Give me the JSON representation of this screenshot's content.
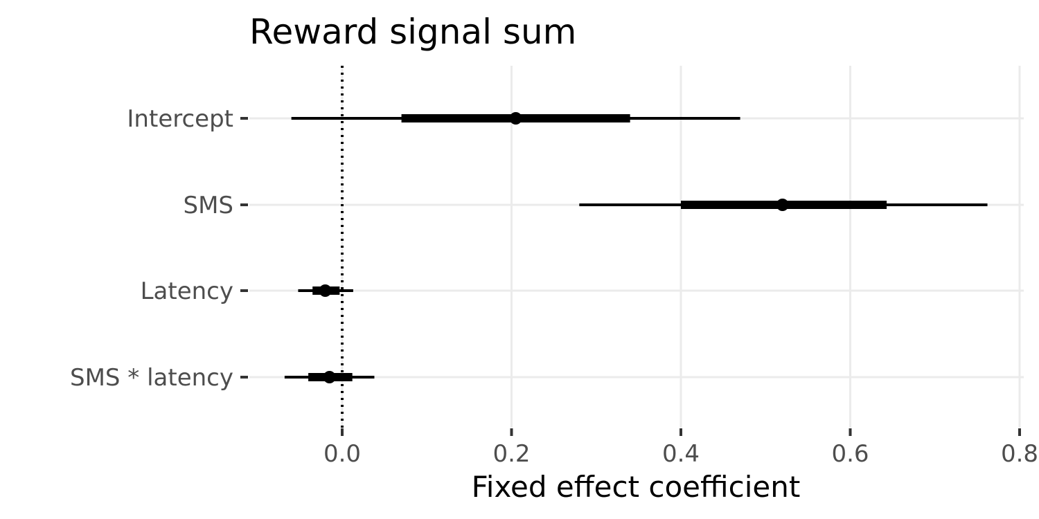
{
  "chart_data": {
    "type": "forest",
    "title": "Reward signal sum",
    "xlabel": "Fixed effect coefficient",
    "ylabel": "",
    "xlim": [
      -0.115,
      0.81
    ],
    "xticks": [
      0.0,
      0.2,
      0.4,
      0.6,
      0.8
    ],
    "xtick_labels": [
      "0.0",
      "0.2",
      "0.4",
      "0.6",
      "0.8"
    ],
    "reference_line": {
      "x": 0.0,
      "style": "dotted"
    },
    "grid": true,
    "legend": "none",
    "categories": [
      "Intercept",
      "SMS",
      "Latency",
      "SMS * latency"
    ],
    "points": [
      {
        "label": "Intercept",
        "estimate": 0.205,
        "inner": [
          0.07,
          0.34
        ],
        "outer": [
          -0.06,
          0.47
        ]
      },
      {
        "label": "SMS",
        "estimate": 0.52,
        "inner": [
          0.4,
          0.643
        ],
        "outer": [
          0.28,
          0.762
        ]
      },
      {
        "label": "Latency",
        "estimate": -0.02,
        "inner": [
          -0.035,
          -0.003
        ],
        "outer": [
          -0.052,
          0.013
        ]
      },
      {
        "label": "SMS * latency",
        "estimate": -0.015,
        "inner": [
          -0.04,
          0.012
        ],
        "outer": [
          -0.068,
          0.038
        ]
      }
    ],
    "colors": {
      "mark": "#000000",
      "grid": "#ebebeb",
      "tick_text": "#4d4d4d"
    }
  }
}
